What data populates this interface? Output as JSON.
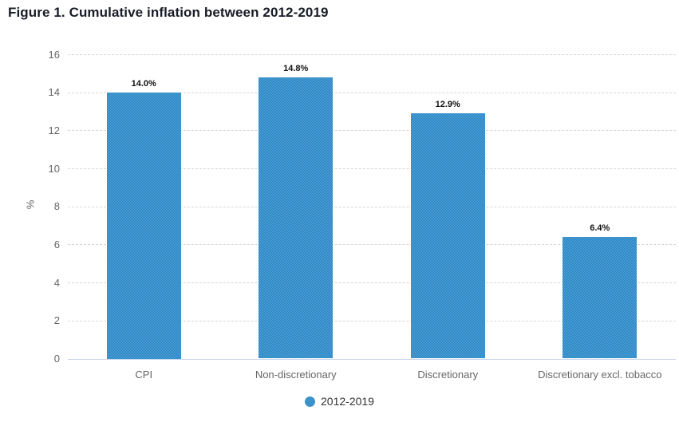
{
  "chart_data": {
    "type": "bar",
    "title": "Figure 1. Cumulative inflation between 2012-2019",
    "categories": [
      "CPI",
      "Non-discretionary",
      "Discretionary",
      "Discretionary excl. tobacco"
    ],
    "series": [
      {
        "name": "2012-2019",
        "values": [
          14.0,
          14.8,
          12.9,
          6.4
        ]
      }
    ],
    "data_labels": [
      "14.0%",
      "14.8%",
      "12.9%",
      "6.4%"
    ],
    "xlabel": "",
    "ylabel": "%",
    "ylim": [
      0,
      16
    ],
    "yticks": [
      0,
      2,
      4,
      6,
      8,
      10,
      12,
      14,
      16
    ],
    "grid": "horizontal-dashed",
    "legend_position": "bottom-center",
    "colors": {
      "bar_fill_light": "#4aa5de",
      "bar_fill_dark": "#2e7fb9",
      "gridline": "#d6d6d6",
      "x_axis_line": "#ccd6eb",
      "title_text": "#181c26",
      "axis_text": "#666666",
      "data_label_text": "#111111",
      "legend_text": "#333333"
    }
  }
}
